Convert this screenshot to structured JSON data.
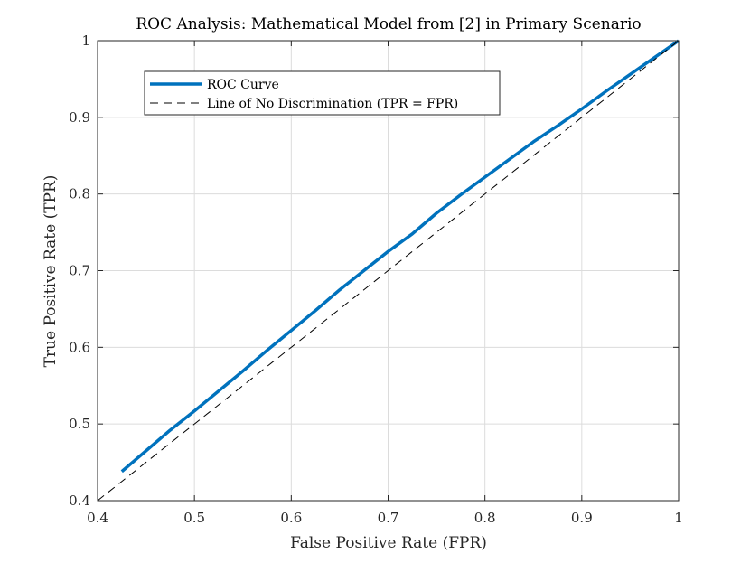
{
  "chart_data": {
    "type": "line",
    "title": "ROC Analysis: Mathematical Model from [2] in Primary Scenario",
    "xlabel": "False Positive Rate (FPR)",
    "ylabel": "True Positive Rate (TPR)",
    "xlim": [
      0.4,
      1
    ],
    "ylim": [
      0.4,
      1
    ],
    "xticks": [
      0.4,
      0.5,
      0.6,
      0.7,
      0.8,
      0.9,
      1
    ],
    "yticks": [
      0.4,
      0.5,
      0.6,
      0.7,
      0.8,
      0.9,
      1
    ],
    "xtick_labels": [
      "0.4",
      "0.5",
      "0.6",
      "0.7",
      "0.8",
      "0.9",
      "1"
    ],
    "ytick_labels": [
      "0.4",
      "0.5",
      "0.6",
      "0.7",
      "0.8",
      "0.9",
      "1"
    ],
    "grid": true,
    "legend_position": "top-left",
    "series": [
      {
        "name": "ROC Curve",
        "style": "solid",
        "color": "#0072BD",
        "x": [
          0.425,
          0.45,
          0.475,
          0.5,
          0.525,
          0.55,
          0.575,
          0.6,
          0.625,
          0.65,
          0.675,
          0.7,
          0.725,
          0.75,
          0.775,
          0.8,
          0.825,
          0.85,
          0.875,
          0.9,
          0.925,
          0.95,
          0.975,
          1.0
        ],
        "y": [
          0.438,
          0.465,
          0.492,
          0.517,
          0.543,
          0.569,
          0.596,
          0.622,
          0.648,
          0.675,
          0.7,
          0.725,
          0.748,
          0.775,
          0.799,
          0.822,
          0.845,
          0.868,
          0.889,
          0.911,
          0.934,
          0.956,
          0.978,
          1.0
        ]
      },
      {
        "name": "Line of No Discrimination (TPR = FPR)",
        "style": "dashed",
        "color": "#000000",
        "x": [
          0.4,
          1.0
        ],
        "y": [
          0.4,
          1.0
        ]
      }
    ]
  }
}
